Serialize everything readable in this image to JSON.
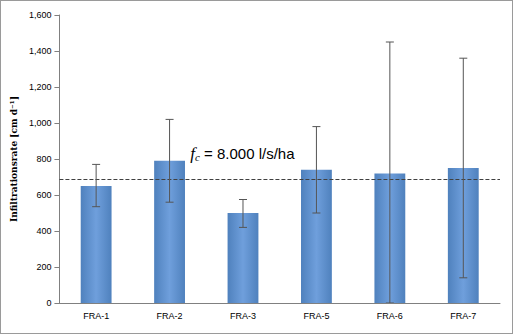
{
  "chart_data": {
    "type": "bar",
    "y_label": "Infiltrationsrate [cm d⁻¹]",
    "categories": [
      "FRA-1",
      "FRA-2",
      "FRA-3",
      "FRA-5",
      "FRA-6",
      "FRA-7"
    ],
    "values": [
      650,
      790,
      500,
      740,
      720,
      750
    ],
    "error_low": [
      535,
      560,
      420,
      500,
      0,
      140
    ],
    "error_high": [
      770,
      1020,
      575,
      980,
      1450,
      1360
    ],
    "color": "#4f81bd",
    "reference_line": 690,
    "annotation": "fc = 8.000 l/s/ha",
    "ylim": [
      0,
      1600
    ],
    "yticks": [
      0,
      200,
      400,
      600,
      800,
      1000,
      1200,
      1400,
      1600
    ],
    "grid": false
  }
}
